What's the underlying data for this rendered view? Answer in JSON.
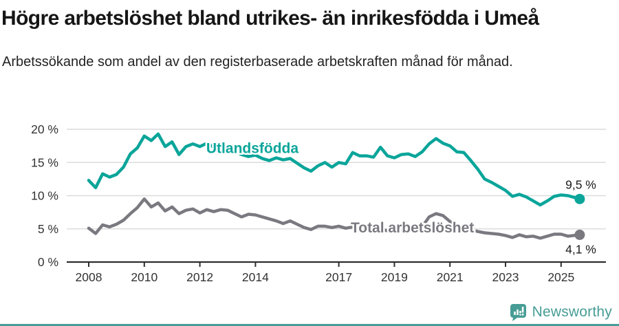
{
  "footer": {
    "brand": "Newsworthy"
  },
  "colors": {
    "series_foreign": "#0ba59a",
    "series_total": "#7a7980",
    "brand_teal": "#479d96",
    "grid": "#dcdcdc",
    "axis": "#2e2e2e",
    "tick_text": "#333333",
    "title_text": "#161616"
  },
  "chart_data": {
    "type": "line",
    "title": "Högre arbetslöshet bland utrikes- än inrikesfödda i Umeå",
    "subtitle": "Arbetssökande som andel av den registerbaserade arbetskraften månad för månad.",
    "xlabel": "",
    "ylabel": "",
    "grid": "horizontal",
    "legend_position": "inline-labels",
    "xlim": [
      2007.2,
      2026.3
    ],
    "ylim": [
      0,
      20
    ],
    "x_ticks": [
      2008,
      2010,
      2012,
      2014,
      2017,
      2019,
      2021,
      2023,
      2025
    ],
    "y_ticks": [
      {
        "value": 0,
        "label": "0 %"
      },
      {
        "value": 5,
        "label": "5 %"
      },
      {
        "value": 10,
        "label": "10 %"
      },
      {
        "value": 15,
        "label": "15 %"
      },
      {
        "value": 20,
        "label": "20 %"
      }
    ],
    "series": [
      {
        "name": "Utlandsfödda",
        "color": "#0ba59a",
        "end_label": "9,5 %",
        "end_label_side": "above",
        "label_anchor": {
          "x": 2012.23,
          "y": 16.4
        },
        "points": [
          [
            2008.0,
            12.3
          ],
          [
            2008.25,
            11.2
          ],
          [
            2008.5,
            13.3
          ],
          [
            2008.75,
            12.8
          ],
          [
            2009.0,
            13.2
          ],
          [
            2009.25,
            14.3
          ],
          [
            2009.5,
            16.3
          ],
          [
            2009.75,
            17.2
          ],
          [
            2010.0,
            19.0
          ],
          [
            2010.25,
            18.3
          ],
          [
            2010.5,
            19.3
          ],
          [
            2010.75,
            17.4
          ],
          [
            2011.0,
            18.1
          ],
          [
            2011.25,
            16.2
          ],
          [
            2011.5,
            17.4
          ],
          [
            2011.75,
            17.8
          ],
          [
            2012.0,
            17.4
          ],
          [
            2012.25,
            17.9
          ],
          [
            2012.5,
            17.3
          ],
          [
            2012.75,
            17.6
          ],
          [
            2013.0,
            17.2
          ],
          [
            2013.25,
            16.7
          ],
          [
            2013.5,
            16.2
          ],
          [
            2013.75,
            15.9
          ],
          [
            2014.0,
            16.1
          ],
          [
            2014.25,
            15.6
          ],
          [
            2014.5,
            15.3
          ],
          [
            2014.75,
            15.7
          ],
          [
            2015.0,
            15.4
          ],
          [
            2015.25,
            15.6
          ],
          [
            2015.5,
            14.9
          ],
          [
            2015.75,
            14.2
          ],
          [
            2016.0,
            13.7
          ],
          [
            2016.25,
            14.5
          ],
          [
            2016.5,
            15.0
          ],
          [
            2016.75,
            14.3
          ],
          [
            2017.0,
            15.0
          ],
          [
            2017.25,
            14.8
          ],
          [
            2017.5,
            16.5
          ],
          [
            2017.75,
            16.0
          ],
          [
            2018.0,
            16.0
          ],
          [
            2018.25,
            15.8
          ],
          [
            2018.5,
            17.3
          ],
          [
            2018.75,
            16.0
          ],
          [
            2019.0,
            15.7
          ],
          [
            2019.25,
            16.2
          ],
          [
            2019.5,
            16.3
          ],
          [
            2019.75,
            15.9
          ],
          [
            2020.0,
            16.6
          ],
          [
            2020.25,
            17.8
          ],
          [
            2020.5,
            18.6
          ],
          [
            2020.75,
            17.9
          ],
          [
            2021.0,
            17.5
          ],
          [
            2021.25,
            16.6
          ],
          [
            2021.5,
            16.5
          ],
          [
            2021.75,
            15.3
          ],
          [
            2022.0,
            14.0
          ],
          [
            2022.25,
            12.5
          ],
          [
            2022.5,
            12.0
          ],
          [
            2022.75,
            11.4
          ],
          [
            2023.0,
            10.8
          ],
          [
            2023.25,
            9.9
          ],
          [
            2023.5,
            10.2
          ],
          [
            2023.75,
            9.8
          ],
          [
            2024.0,
            9.2
          ],
          [
            2024.25,
            8.6
          ],
          [
            2024.5,
            9.2
          ],
          [
            2024.75,
            9.9
          ],
          [
            2025.0,
            10.1
          ],
          [
            2025.25,
            10.0
          ],
          [
            2025.67,
            9.5
          ]
        ]
      },
      {
        "name": "Total arbetslöshet",
        "color": "#7a7980",
        "end_label": "4,1 %",
        "end_label_side": "below",
        "label_anchor": {
          "x": 2017.43,
          "y": 4.45
        },
        "points": [
          [
            2008.0,
            5.1
          ],
          [
            2008.25,
            4.3
          ],
          [
            2008.5,
            5.6
          ],
          [
            2008.75,
            5.3
          ],
          [
            2009.0,
            5.7
          ],
          [
            2009.25,
            6.3
          ],
          [
            2009.5,
            7.3
          ],
          [
            2009.75,
            8.2
          ],
          [
            2010.0,
            9.5
          ],
          [
            2010.25,
            8.3
          ],
          [
            2010.5,
            8.9
          ],
          [
            2010.75,
            7.7
          ],
          [
            2011.0,
            8.3
          ],
          [
            2011.25,
            7.3
          ],
          [
            2011.5,
            7.8
          ],
          [
            2011.75,
            8.0
          ],
          [
            2012.0,
            7.4
          ],
          [
            2012.25,
            7.9
          ],
          [
            2012.5,
            7.6
          ],
          [
            2012.75,
            7.9
          ],
          [
            2013.0,
            7.8
          ],
          [
            2013.25,
            7.3
          ],
          [
            2013.5,
            6.8
          ],
          [
            2013.75,
            7.2
          ],
          [
            2014.0,
            7.1
          ],
          [
            2014.25,
            6.8
          ],
          [
            2014.5,
            6.5
          ],
          [
            2014.75,
            6.2
          ],
          [
            2015.0,
            5.8
          ],
          [
            2015.25,
            6.2
          ],
          [
            2015.5,
            5.7
          ],
          [
            2015.75,
            5.2
          ],
          [
            2016.0,
            4.9
          ],
          [
            2016.25,
            5.4
          ],
          [
            2016.5,
            5.4
          ],
          [
            2016.75,
            5.2
          ],
          [
            2017.0,
            5.4
          ],
          [
            2017.25,
            5.1
          ],
          [
            2017.5,
            5.3
          ],
          [
            2017.75,
            5.0
          ],
          [
            2018.0,
            5.1
          ],
          [
            2018.25,
            4.8
          ],
          [
            2018.5,
            5.0
          ],
          [
            2018.75,
            4.7
          ],
          [
            2019.0,
            4.8
          ],
          [
            2019.25,
            4.7
          ],
          [
            2019.5,
            5.0
          ],
          [
            2019.75,
            4.9
          ],
          [
            2020.0,
            5.3
          ],
          [
            2020.25,
            6.8
          ],
          [
            2020.5,
            7.3
          ],
          [
            2020.75,
            7.0
          ],
          [
            2021.0,
            6.1
          ],
          [
            2021.25,
            5.6
          ],
          [
            2021.5,
            5.3
          ],
          [
            2021.75,
            4.9
          ],
          [
            2022.0,
            4.6
          ],
          [
            2022.25,
            4.4
          ],
          [
            2022.5,
            4.3
          ],
          [
            2022.75,
            4.2
          ],
          [
            2023.0,
            4.0
          ],
          [
            2023.25,
            3.7
          ],
          [
            2023.5,
            4.1
          ],
          [
            2023.75,
            3.8
          ],
          [
            2024.0,
            3.9
          ],
          [
            2024.25,
            3.6
          ],
          [
            2024.5,
            3.9
          ],
          [
            2024.75,
            4.2
          ],
          [
            2025.0,
            4.2
          ],
          [
            2025.25,
            3.9
          ],
          [
            2025.67,
            4.1
          ]
        ]
      }
    ]
  }
}
